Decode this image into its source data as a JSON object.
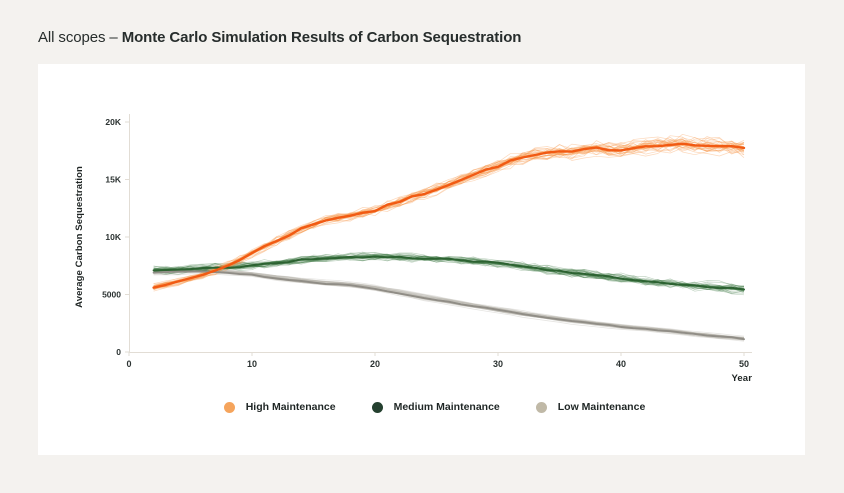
{
  "page": {
    "background": "#F4F2EF",
    "card_background": "#FFFFFF"
  },
  "header": {
    "title_prefix": "All scopes –",
    "title_bold": "Monte Carlo Simulation Results of Carbon Sequestration"
  },
  "chart_data": {
    "type": "line",
    "subtype": "monte-carlo-ensemble",
    "title": "All scopes – Monte Carlo Simulation Results of Carbon Sequestration",
    "xlabel": "Year",
    "ylabel": "Average Carbon Sequestration",
    "xlim": [
      0,
      50
    ],
    "ylim": [
      0,
      20000
    ],
    "grid": false,
    "legend_position": "bottom",
    "x_ticks": [
      0,
      10,
      20,
      30,
      40,
      50
    ],
    "y_ticks": [
      {
        "v": 0,
        "l": "0"
      },
      {
        "v": 5000,
        "l": "5000"
      },
      {
        "v": 10000,
        "l": "10K"
      },
      {
        "v": 15000,
        "l": "15K"
      },
      {
        "v": 20000,
        "l": "20K"
      }
    ],
    "years": [
      2,
      4,
      6,
      8,
      10,
      12,
      14,
      16,
      18,
      20,
      22,
      24,
      26,
      28,
      30,
      32,
      34,
      36,
      38,
      40,
      42,
      44,
      46,
      48,
      50
    ],
    "series": [
      {
        "name": "High Maintenance",
        "color": "#F15A13",
        "trace_color": "#F89C52",
        "legend_color": "#F5A45C",
        "mean_values": [
          5600,
          6100,
          6700,
          7500,
          8600,
          9700,
          10700,
          11500,
          11900,
          12300,
          13100,
          13800,
          14600,
          15400,
          16200,
          16900,
          17300,
          17400,
          17700,
          17600,
          17900,
          18100,
          18000,
          17900,
          17700
        ],
        "sim": {
          "traces": 30,
          "noise_start": 320,
          "noise_end": 1000,
          "jitter": 0.5,
          "walk": 0.35,
          "decay": 0.93,
          "mean_wiggle": 110
        }
      },
      {
        "name": "Medium Maintenance",
        "color": "#2C6231",
        "trace_color": "#3F7A44",
        "legend_color": "#24402F",
        "mean_values": [
          7100,
          7150,
          7250,
          7350,
          7500,
          7750,
          8000,
          8150,
          8250,
          8300,
          8250,
          8150,
          8050,
          7900,
          7700,
          7450,
          7150,
          6900,
          6650,
          6400,
          6150,
          5950,
          5750,
          5600,
          5450
        ],
        "sim": {
          "traces": 30,
          "noise_start": 350,
          "noise_end": 440,
          "jitter": 0.55,
          "walk": 0.4,
          "decay": 0.93,
          "mean_wiggle": 70
        }
      },
      {
        "name": "Low Maintenance",
        "color": "#908D86",
        "trace_color": "#B7B3A9",
        "legend_color": "#C0B9A7",
        "mean_values": [
          6900,
          7000,
          7000,
          6900,
          6700,
          6400,
          6150,
          5950,
          5800,
          5500,
          5100,
          4700,
          4350,
          4000,
          3650,
          3300,
          3000,
          2700,
          2450,
          2200,
          2000,
          1800,
          1550,
          1350,
          1150
        ],
        "sim": {
          "traces": 26,
          "noise_start": 270,
          "noise_end": 130,
          "jitter": 0.08,
          "walk": 0.45,
          "decay": 0.97,
          "mean_wiggle": 35
        }
      }
    ]
  }
}
